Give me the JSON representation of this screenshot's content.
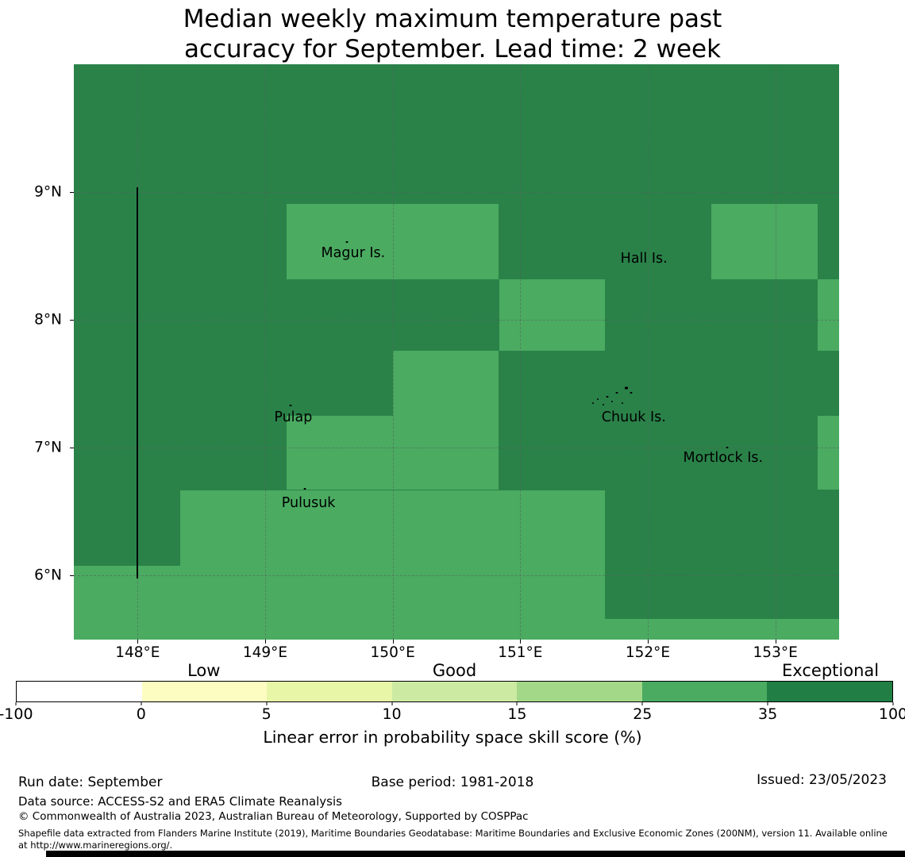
{
  "title": {
    "lines": [
      "Median weekly maximum temperature past",
      "accuracy for September. Lead time: 2 week"
    ]
  },
  "chart_data": {
    "type": "heatmap",
    "title": "Median weekly maximum temperature past accuracy for September. Lead time: 2 week",
    "extent": {
      "lon": [
        147.5,
        153.5
      ],
      "lat": [
        5.5,
        10.0
      ]
    },
    "x_ticks": [
      {
        "lon": 148,
        "label": "148°E"
      },
      {
        "lon": 149,
        "label": "149°E"
      },
      {
        "lon": 150,
        "label": "150°E"
      },
      {
        "lon": 151,
        "label": "151°E"
      },
      {
        "lon": 152,
        "label": "152°E"
      },
      {
        "lon": 153,
        "label": "153°E"
      }
    ],
    "y_ticks": [
      {
        "lat": 9,
        "label": "9°N"
      },
      {
        "lat": 8,
        "label": "8°N"
      },
      {
        "lat": 7,
        "label": "7°N"
      },
      {
        "lat": 6,
        "label": "6°N"
      }
    ],
    "map_background": {
      "bin": "35-100",
      "color": "#2a8249"
    },
    "cells": [
      {
        "lon": [
          149.167,
          150.833
        ],
        "lat": [
          8.32,
          8.91
        ],
        "bin": "25-35",
        "color": "#4aab61"
      },
      {
        "lon": [
          152.5,
          153.333
        ],
        "lat": [
          8.32,
          8.91
        ],
        "bin": "25-35",
        "color": "#4aab61"
      },
      {
        "lon": [
          153.333,
          153.5
        ],
        "lat": [
          7.76,
          8.32
        ],
        "bin": "25-35",
        "color": "#4aab61"
      },
      {
        "lon": [
          150.833,
          151.667
        ],
        "lat": [
          7.76,
          8.32
        ],
        "bin": "25-35",
        "color": "#4aab61"
      },
      {
        "lon": [
          150.0,
          150.833
        ],
        "lat": [
          7.25,
          7.76
        ],
        "bin": "25-35",
        "color": "#4aab61"
      },
      {
        "lon": [
          149.167,
          150.833
        ],
        "lat": [
          6.67,
          7.25
        ],
        "bin": "25-35",
        "color": "#4aab61"
      },
      {
        "lon": [
          153.333,
          153.5
        ],
        "lat": [
          6.67,
          7.25
        ],
        "bin": "25-35",
        "color": "#4aab61"
      },
      {
        "lon": [
          148.333,
          151.667
        ],
        "lat": [
          6.08,
          6.67
        ],
        "bin": "25-35",
        "color": "#4aab61"
      },
      {
        "lon": [
          147.5,
          151.667
        ],
        "lat": [
          5.5,
          6.08
        ],
        "bin": "25-35",
        "color": "#4aab61"
      },
      {
        "lon": [
          151.667,
          153.5
        ],
        "lat": [
          5.5,
          5.66
        ],
        "bin": "25-35",
        "color": "#4aab61"
      }
    ],
    "boundary_line": {
      "lon": 148.0,
      "lat_range": [
        5.98,
        9.04
      ],
      "color": "#000000"
    },
    "islands": [
      {
        "label": "Magur Is.",
        "lon": 149.69,
        "lat": 8.52
      },
      {
        "label": "Hall Is.",
        "lon": 151.97,
        "lat": 8.48
      },
      {
        "label": "Pulap",
        "lon": 149.22,
        "lat": 7.24
      },
      {
        "label": "Chuuk Is.",
        "lon": 151.89,
        "lat": 7.24
      },
      {
        "label": "Mortlock Is.",
        "lon": 152.59,
        "lat": 6.92
      },
      {
        "label": "Pulusuk",
        "lon": 149.34,
        "lat": 6.57
      }
    ],
    "island_marks": [
      {
        "lon": 149.64,
        "lat": 8.61,
        "size": 3
      },
      {
        "lon": 149.2,
        "lat": 7.33,
        "size": 3
      },
      {
        "lon": 149.31,
        "lat": 6.68,
        "size": 3
      },
      {
        "lon": 152.62,
        "lat": 7.0,
        "size": 3
      },
      {
        "lon": 151.57,
        "lat": 7.35,
        "size": 2
      },
      {
        "lon": 151.61,
        "lat": 7.38,
        "size": 2
      },
      {
        "lon": 151.65,
        "lat": 7.34,
        "size": 2
      },
      {
        "lon": 151.68,
        "lat": 7.4,
        "size": 3
      },
      {
        "lon": 151.72,
        "lat": 7.36,
        "size": 2
      },
      {
        "lon": 151.76,
        "lat": 7.43,
        "size": 3
      },
      {
        "lon": 151.8,
        "lat": 7.35,
        "size": 2
      },
      {
        "lon": 151.83,
        "lat": 7.47,
        "size": 4
      },
      {
        "lon": 151.87,
        "lat": 7.43,
        "size": 3
      }
    ],
    "bins": [
      {
        "range": "-100 to 0",
        "color": "#ffffff"
      },
      {
        "range": "0 to 5",
        "color": "#fdfdc2"
      },
      {
        "range": "5 to 10",
        "color": "#e8f6a8"
      },
      {
        "range": "10 to 15",
        "color": "#cceaa2"
      },
      {
        "range": "15 to 25",
        "color": "#a4d889"
      },
      {
        "range": "25 to 35",
        "color": "#4aab61"
      },
      {
        "range": "35 to 100",
        "color": "#217f45"
      }
    ],
    "colorbar": {
      "tick_labels": [
        "-100",
        "0",
        "5",
        "10",
        "15",
        "25",
        "35",
        "100"
      ],
      "category_labels": [
        {
          "text": "Low",
          "segment_index": 1
        },
        {
          "text": "Good",
          "segment_index": 3
        },
        {
          "text": "Exceptional",
          "segment_index": 6
        }
      ],
      "axis_label": "Linear error in probability space skill score (%)"
    }
  },
  "footer": {
    "run_date": "Run date: September",
    "base_period": "Base period: 1981-2018",
    "issued": "Issued: 23/05/2023",
    "data_source": "Data source: ACCESS-S2 and ERA5 Climate Reanalysis",
    "copyright": "© Commonwealth of Australia 2023, Australian Bureau of Meteorology, Supported by COSPPac",
    "shapefile_note": "Shapefile data extracted from Flanders Marine Institute (2019), Maritime Boundaries Geodatabase: Maritime Boundaries and Exclusive Economic Zones (200NM), version 11. Available online at http://www.marineregions.org/."
  }
}
